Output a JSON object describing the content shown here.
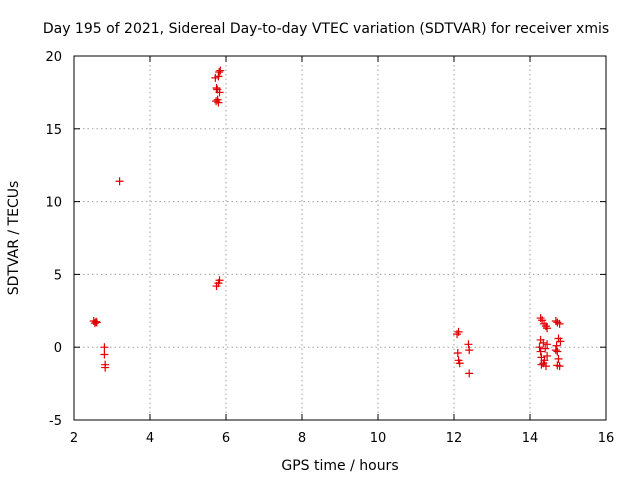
{
  "chart_data": {
    "type": "scatter",
    "title": "Day 195 of 2021, Sidereal Day-to-day VTEC variation (SDTVAR) for receiver xmis",
    "xlabel": "GPS time / hours",
    "ylabel": "SDTVAR / TECUs",
    "xlim": [
      2,
      16
    ],
    "ylim": [
      -5,
      20
    ],
    "xticks": [
      "2",
      "4",
      "6",
      "8",
      "10",
      "12",
      "14",
      "16"
    ],
    "yticks": [
      "-5",
      "0",
      "5",
      "10",
      "15",
      "20"
    ],
    "grid": true,
    "marker": "+",
    "marker_color": "#e00000",
    "series": [
      {
        "name": "SDTVAR",
        "points": [
          [
            2.52,
            1.8
          ],
          [
            2.55,
            1.65
          ],
          [
            2.58,
            1.75
          ],
          [
            2.6,
            1.7
          ],
          [
            2.8,
            0.0
          ],
          [
            2.8,
            -0.5
          ],
          [
            2.82,
            -1.2
          ],
          [
            2.82,
            -1.4
          ],
          [
            3.2,
            11.4
          ],
          [
            5.72,
            18.5
          ],
          [
            5.75,
            17.8
          ],
          [
            5.78,
            17.0
          ],
          [
            5.8,
            16.8
          ],
          [
            5.82,
            18.9
          ],
          [
            5.83,
            17.5
          ],
          [
            5.85,
            19.0
          ],
          [
            5.74,
            16.9
          ],
          [
            5.8,
            18.6
          ],
          [
            5.77,
            17.7
          ],
          [
            5.75,
            4.2
          ],
          [
            5.8,
            4.4
          ],
          [
            5.83,
            4.6
          ],
          [
            12.08,
            0.9
          ],
          [
            12.12,
            1.05
          ],
          [
            12.1,
            -0.4
          ],
          [
            12.12,
            -0.9
          ],
          [
            12.15,
            -1.1
          ],
          [
            12.38,
            0.2
          ],
          [
            12.4,
            -0.2
          ],
          [
            12.4,
            -1.8
          ],
          [
            14.28,
            2.0
          ],
          [
            14.32,
            1.85
          ],
          [
            14.37,
            1.6
          ],
          [
            14.42,
            1.45
          ],
          [
            14.45,
            1.3
          ],
          [
            14.25,
            0.0
          ],
          [
            14.28,
            -0.3
          ],
          [
            14.3,
            -0.7
          ],
          [
            14.3,
            -1.2
          ],
          [
            14.35,
            0.3
          ],
          [
            14.38,
            -0.9
          ],
          [
            14.4,
            -0.1
          ],
          [
            14.42,
            -1.3
          ],
          [
            14.45,
            0.2
          ],
          [
            14.45,
            -0.6
          ],
          [
            14.35,
            -1.1
          ],
          [
            14.28,
            0.5
          ],
          [
            14.68,
            1.8
          ],
          [
            14.72,
            1.7
          ],
          [
            14.78,
            1.6
          ],
          [
            14.7,
            0.1
          ],
          [
            14.72,
            -0.3
          ],
          [
            14.75,
            -0.8
          ],
          [
            14.78,
            -1.3
          ],
          [
            14.8,
            0.4
          ],
          [
            14.72,
            -1.25
          ],
          [
            14.68,
            -0.2
          ],
          [
            14.75,
            0.6
          ]
        ]
      }
    ]
  }
}
